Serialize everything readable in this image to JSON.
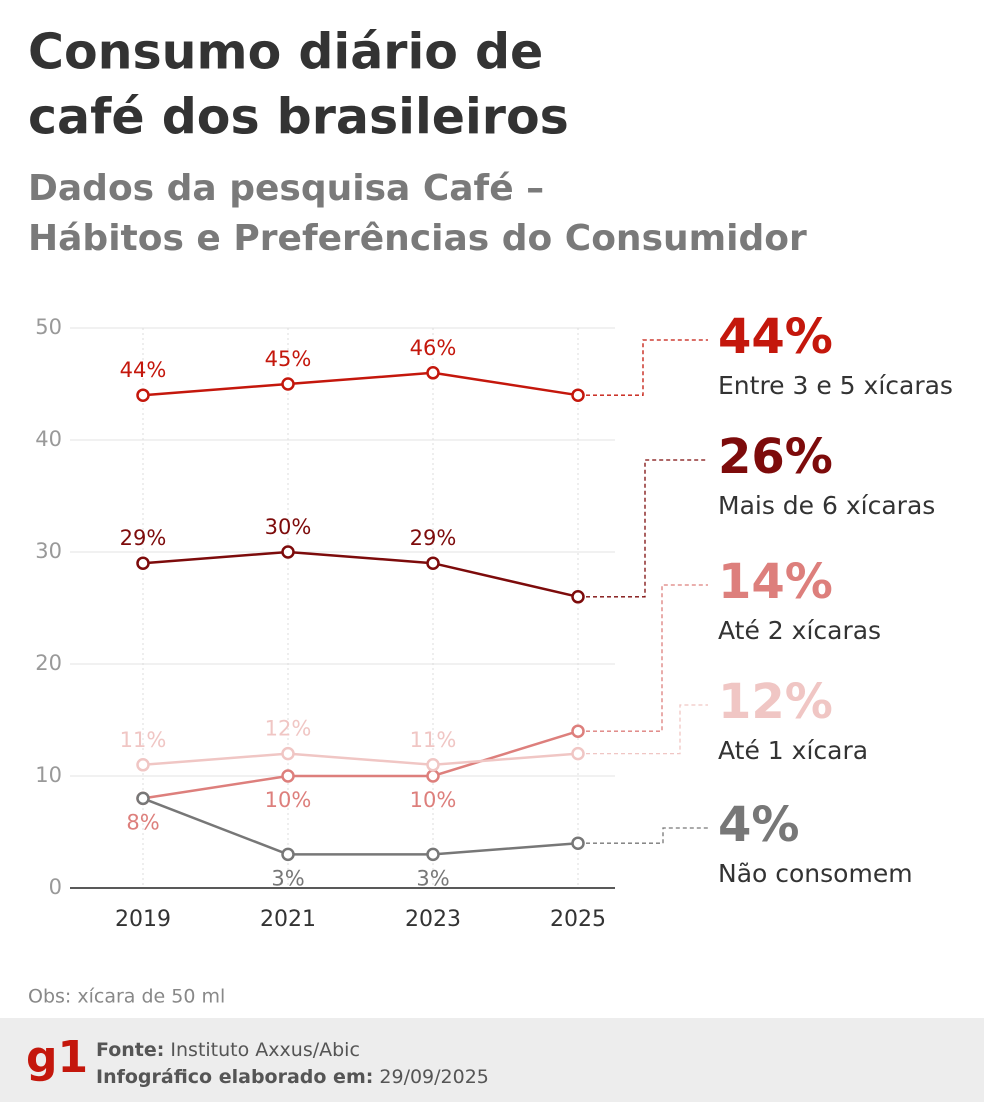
{
  "chart_data": {
    "type": "line",
    "title": [
      "Consumo diário de",
      "café dos brasileiros"
    ],
    "subtitle": [
      "Dados da pesquisa Café –",
      "Hábitos e Preferências do Consumidor"
    ],
    "categories": [
      "2019",
      "2021",
      "2023",
      "2025"
    ],
    "series": [
      {
        "name": "Entre 3 e 5 xícaras",
        "color": "#c4170c",
        "values": [
          44,
          45,
          46,
          44
        ],
        "value_labels": [
          "44%",
          "45%",
          "46%",
          "44%"
        ]
      },
      {
        "name": "Mais de 6 xícaras",
        "color": "#7d0b0b",
        "values": [
          29,
          30,
          29,
          26
        ],
        "value_labels": [
          "29%",
          "30%",
          "29%",
          "26%"
        ]
      },
      {
        "name": "Até 2 xícaras",
        "color": "#dd7f7c",
        "values": [
          8,
          10,
          10,
          14
        ],
        "value_labels": [
          "8%",
          "10%",
          "10%",
          "14%"
        ]
      },
      {
        "name": "Até 1 xícara",
        "color": "#f0c6c4",
        "values": [
          11,
          12,
          11,
          12
        ],
        "value_labels": [
          "11%",
          "12%",
          "11%",
          "12%"
        ]
      },
      {
        "name": "Não consomem",
        "color": "#777777",
        "values": [
          8,
          3,
          3,
          4
        ],
        "value_labels": [
          null,
          "3%",
          "3%",
          "4%"
        ]
      }
    ],
    "ylim": [
      0,
      50
    ],
    "yticks": [
      0,
      10,
      20,
      30,
      40,
      50
    ],
    "grid": true,
    "note": "Obs: xícara de 50 ml",
    "logo": "g1",
    "source_label": "Fonte:",
    "source": "Instituto Axxus/Abic",
    "date_label": "Infográfico elaborado em:",
    "date": "29/09/2025"
  }
}
